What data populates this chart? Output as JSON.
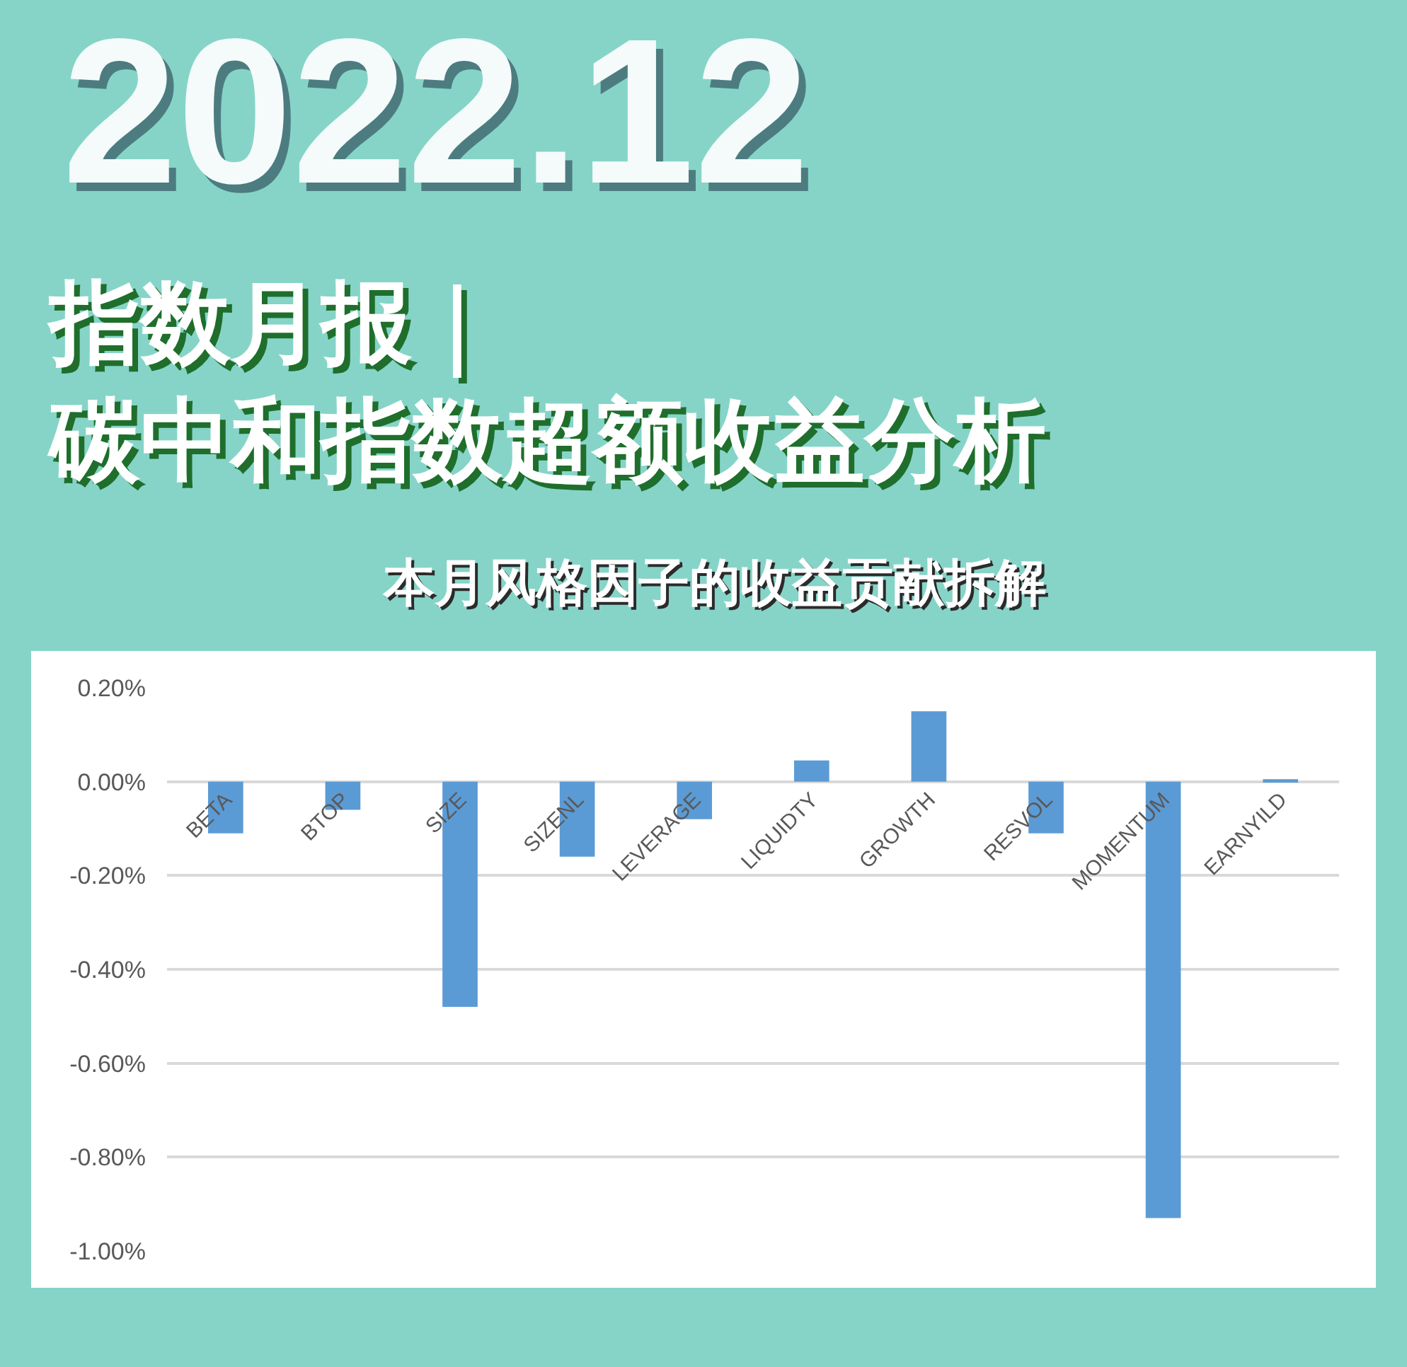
{
  "chart_data": {
    "type": "bar",
    "title": "指数月报｜碳中和指数超额收益分析",
    "subtitle": "本月风格因子的收益贡献拆解",
    "annotations": [
      "2022.12"
    ],
    "categories": [
      "BETA",
      "BTOP",
      "SIZE",
      "SIZENL",
      "LEVERAGE",
      "LIQUIDTY",
      "GROWTH",
      "RESVOL",
      "MOMENTUM",
      "EARNYILD"
    ],
    "values": [
      -0.11,
      -0.06,
      -0.48,
      -0.16,
      -0.08,
      0.045,
      0.15,
      -0.11,
      -0.93,
      0.005
    ],
    "color": "#5b9bd5",
    "ylim": [
      -1.0,
      0.2
    ],
    "yticks": [
      {
        "value": 0.2,
        "label": "0.20%"
      },
      {
        "value": 0.0,
        "label": "0.00%"
      },
      {
        "value": -0.2,
        "label": "-0.20%"
      },
      {
        "value": -0.4,
        "label": "-0.40%"
      },
      {
        "value": -0.6,
        "label": "-0.60%"
      },
      {
        "value": -0.8,
        "label": "-0.80%"
      },
      {
        "value": -1.0,
        "label": "-1.00%"
      }
    ],
    "grid": "y"
  }
}
